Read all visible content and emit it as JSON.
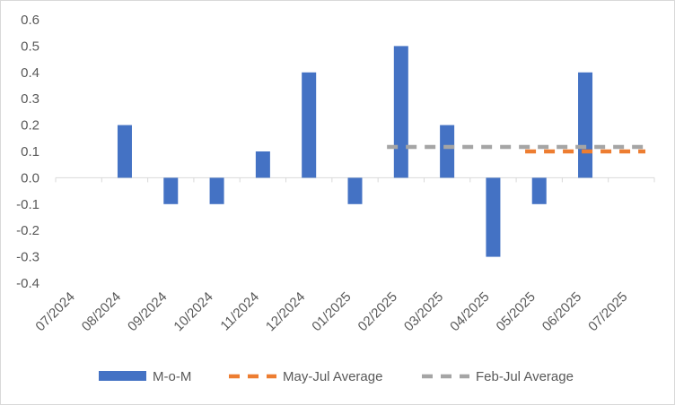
{
  "chart_data": {
    "type": "bar",
    "title": "",
    "xlabel": "",
    "ylabel": "",
    "ylim": [
      -0.4,
      0.6
    ],
    "y_ticks": [
      "0.6",
      "0.5",
      "0.4",
      "0.3",
      "0.2",
      "0.1",
      "0.0",
      "-0.1",
      "-0.2",
      "-0.3",
      "-0.4"
    ],
    "grid": false,
    "legend_position": "bottom",
    "categories": [
      "07/2024",
      "08/2024",
      "09/2024",
      "10/2024",
      "11/2024",
      "12/2024",
      "01/2025",
      "02/2025",
      "03/2025",
      "04/2025",
      "05/2025",
      "06/2025",
      "07/2025"
    ],
    "series": [
      {
        "name": "M-o-M",
        "kind": "bar",
        "color": "#4472c4",
        "values": [
          null,
          0.2,
          -0.1,
          -0.1,
          0.1,
          0.4,
          -0.1,
          0.5,
          0.2,
          -0.3,
          -0.1,
          0.4,
          null
        ]
      },
      {
        "name": "May-Jul Average",
        "kind": "dashed-line",
        "color": "#ed7d31",
        "values": [
          null,
          null,
          null,
          null,
          null,
          null,
          null,
          null,
          null,
          null,
          0.1,
          0.1,
          0.1
        ]
      },
      {
        "name": "Feb-Jul Average",
        "kind": "dashed-line",
        "color": "#a5a5a5",
        "values": [
          null,
          null,
          null,
          null,
          null,
          null,
          null,
          0.117,
          0.117,
          0.117,
          0.117,
          0.117,
          0.117
        ]
      }
    ]
  }
}
